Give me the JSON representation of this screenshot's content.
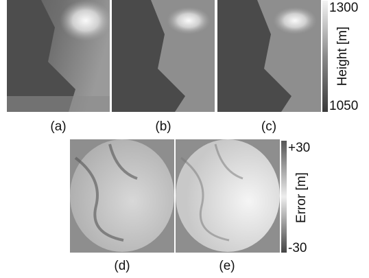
{
  "top_row": {
    "panels": [
      {
        "label": "(a)"
      },
      {
        "label": "(b)"
      },
      {
        "label": "(c)"
      }
    ],
    "colorbar": {
      "max_label": "1300",
      "min_label": "1050",
      "title": "Height [m]"
    }
  },
  "bottom_row": {
    "panels": [
      {
        "label": "(d)"
      },
      {
        "label": "(e)"
      }
    ],
    "colorbar": {
      "max_label": "+30",
      "min_label": "-30",
      "title": "Error [m]"
    }
  }
}
